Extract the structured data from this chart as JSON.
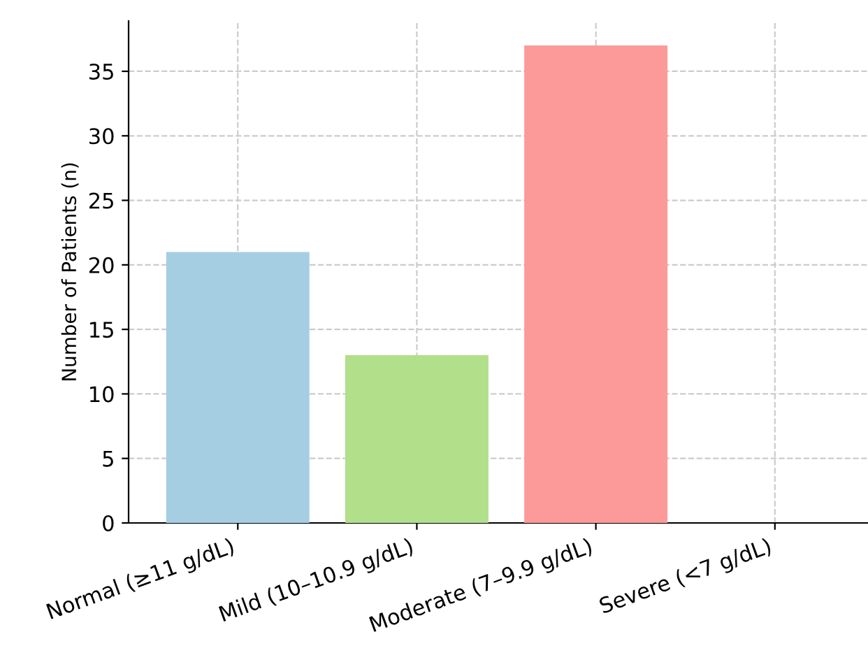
{
  "chart_data": {
    "type": "bar",
    "ylabel": "Number of Patients (n)",
    "categories": [
      "Normal (≥11 g/dL)",
      "Mild (10–10.9 g/dL)",
      "Moderate (7–9.9 g/dL)",
      "Severe (<7 g/dL)"
    ],
    "values": [
      21,
      13,
      37,
      0
    ],
    "colors": [
      "#a6cee3",
      "#b2df8a",
      "#fb9a99",
      "#fdbf6f"
    ],
    "ylim": [
      0,
      38.9
    ],
    "yticks": [
      0,
      5,
      10,
      15,
      20,
      25,
      30,
      35
    ],
    "grid": true
  }
}
